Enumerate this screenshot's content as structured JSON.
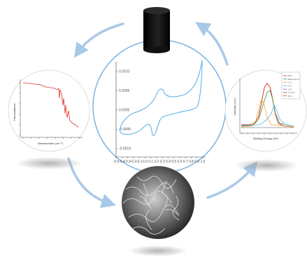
{
  "cv_panel": {
    "x_ticks": [
      "-0.5",
      "-0.4",
      "-0.3",
      "-0.2",
      "-0.1",
      "0.0",
      "0.1",
      "0.2",
      "0.3",
      "0.4",
      "0.5",
      "0.6",
      "0.7",
      "0.8",
      "0.9",
      "1.0"
    ],
    "y_ticks": [
      "0.0010",
      "0.0005",
      "0.0000",
      "-0.0005",
      "-0.0010"
    ],
    "curve_color": "#5fb4e6"
  },
  "ir_panel": {
    "ylabel": "Transmittance",
    "xlabel": "Wavenumber (cm⁻¹)",
    "curve_color": "#e0352b"
  },
  "xps_panel": {
    "ylabel": "Intensity (a.u.)",
    "xlabel": "Binding Energy (eV)",
    "legend": [
      "Raw",
      "Background",
      "C-C",
      "C-O",
      "C=O",
      "O-C=O",
      "Sum"
    ],
    "colors": [
      "#e0352b",
      "#3a9a4c",
      "#f0a93b",
      "#5fb4e6",
      "#8b5cc7",
      "#555555"
    ]
  },
  "cycle_arrow_color": "#a9c9e8"
}
